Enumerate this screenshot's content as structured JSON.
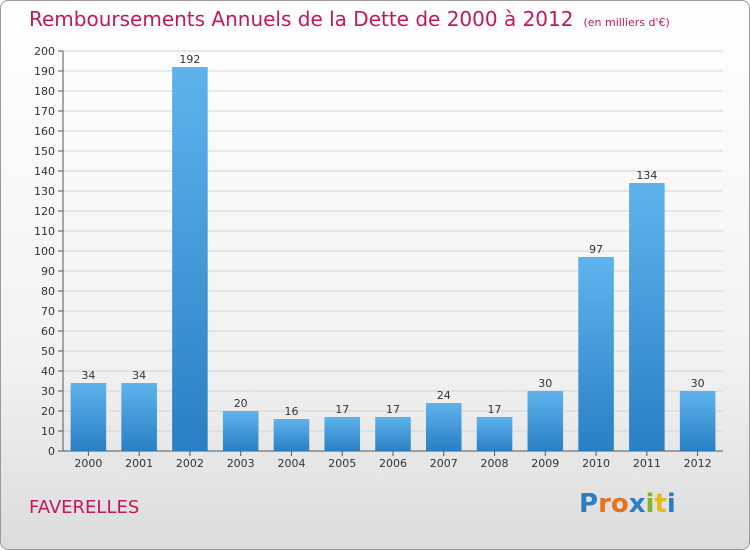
{
  "header": {
    "title": "Remboursements Annuels de la Dette de 2000 à 2012",
    "subtitle": "(en milliers d'€)"
  },
  "footer": {
    "commune": "FAVERELLES",
    "logo": {
      "letters": [
        "P",
        "r",
        "o",
        "x",
        "i",
        "t",
        "i"
      ],
      "colors": [
        "#2a7fc4",
        "#e8731a",
        "#e8731a",
        "#2a7fc4",
        "#7ab82a",
        "#e8b81a",
        "#2a7fc4"
      ]
    }
  },
  "chart_data": {
    "type": "bar",
    "title": "Remboursements Annuels de la Dette de 2000 à 2012",
    "subtitle": "(en milliers d'€)",
    "xlabel": "",
    "ylabel": "",
    "categories": [
      "2000",
      "2001",
      "2002",
      "2003",
      "2004",
      "2005",
      "2006",
      "2007",
      "2008",
      "2009",
      "2010",
      "2011",
      "2012"
    ],
    "values": [
      34,
      34,
      192,
      20,
      16,
      17,
      17,
      24,
      17,
      30,
      97,
      134,
      30
    ],
    "ylim": [
      0,
      200
    ],
    "yticks": [
      0,
      10,
      20,
      30,
      40,
      50,
      60,
      70,
      80,
      90,
      100,
      110,
      120,
      130,
      140,
      150,
      160,
      170,
      180,
      190,
      200
    ],
    "grid": true,
    "bar_color": "#3a96de"
  }
}
